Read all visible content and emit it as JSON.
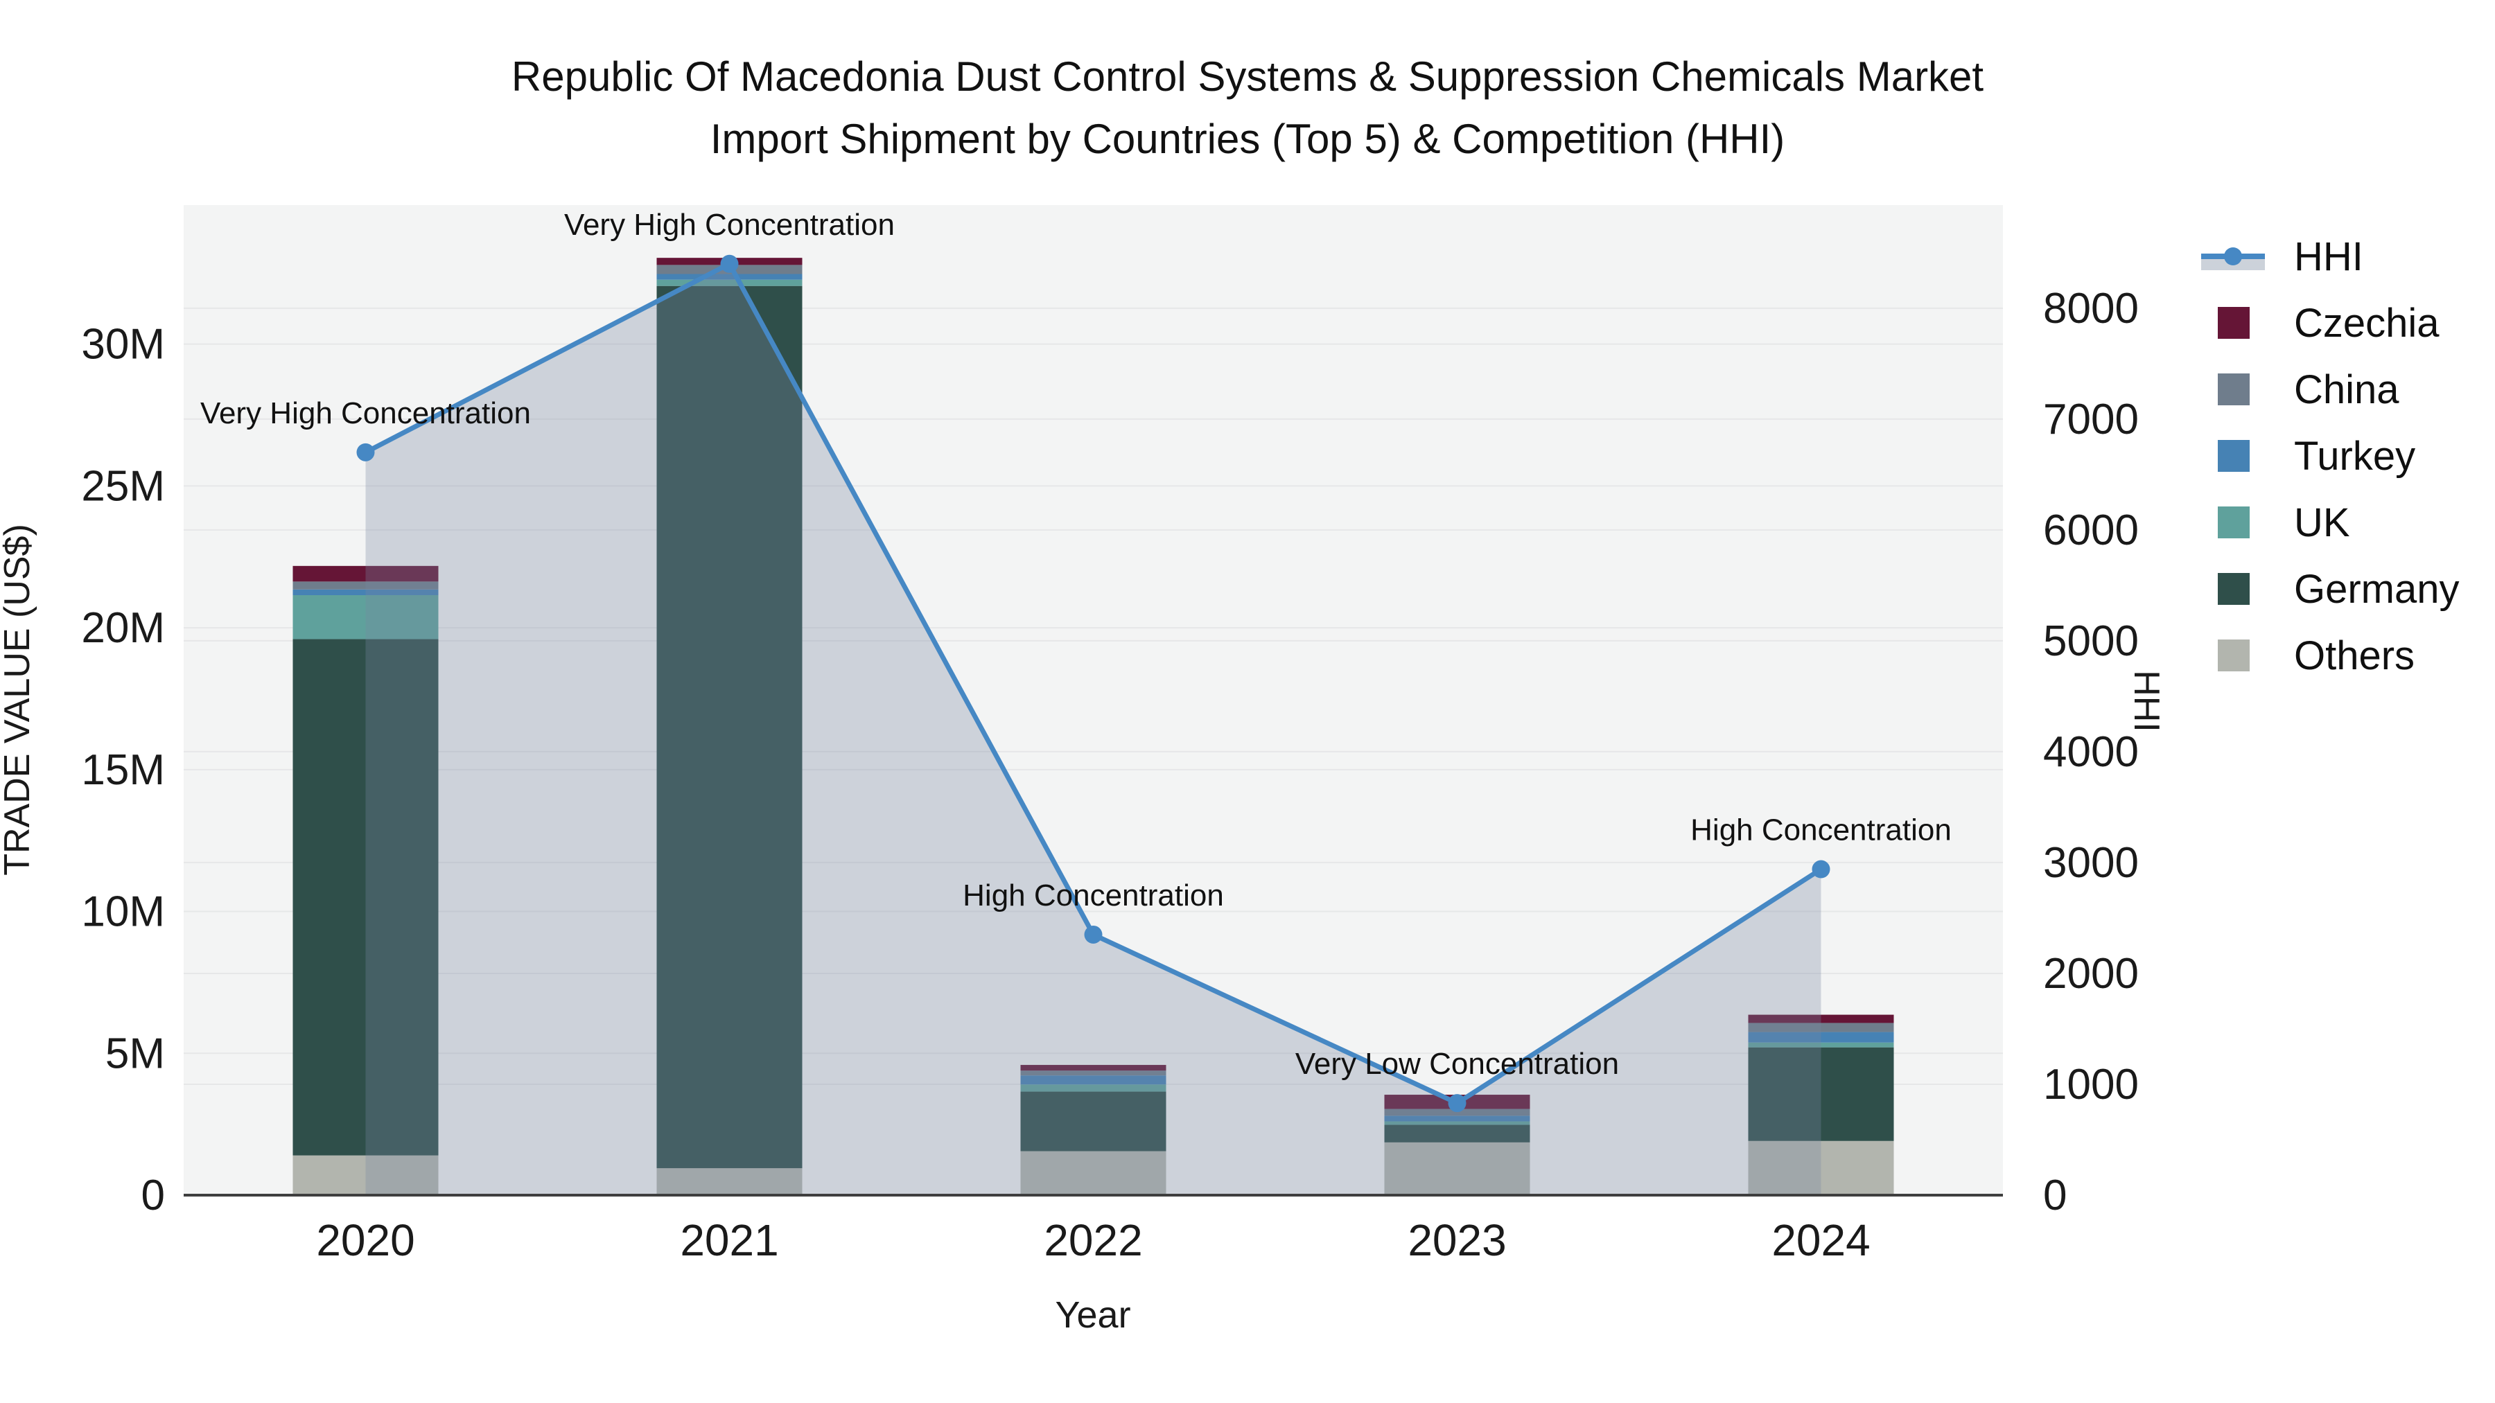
{
  "figure": {
    "title_line1": "Republic Of Macedonia Dust Control Systems & Suppression Chemicals Market",
    "title_line2": "Import Shipment by Countries (Top 5) & Competition (HHI)"
  },
  "legend": {
    "items": [
      {
        "label": "HHI",
        "type": "line",
        "color": "#4688c4",
        "area": "#ccd2da"
      },
      {
        "label": "Czechia",
        "type": "swatch",
        "color": "#651536"
      },
      {
        "label": "China",
        "type": "swatch",
        "color": "#6f7d8c"
      },
      {
        "label": "Turkey",
        "type": "swatch",
        "color": "#4682b4"
      },
      {
        "label": "UK",
        "type": "swatch",
        "color": "#5fa19c"
      },
      {
        "label": "Germany",
        "type": "swatch",
        "color": "#2f4f4a"
      },
      {
        "label": "Others",
        "type": "swatch",
        "color": "#b2b5ae"
      }
    ]
  },
  "chart_data": {
    "type": "bar+line",
    "title": "Republic Of Macedonia Dust Control Systems & Suppression Chemicals Market Import Shipment by Countries (Top 5) & Competition (HHI)",
    "xlabel": "Year",
    "ylabel": "TRADE VALUE (US$)",
    "y2label": "HHI",
    "categories": [
      "2020",
      "2021",
      "2022",
      "2023",
      "2024"
    ],
    "bar_unit": "M US$",
    "series": [
      {
        "name": "Others",
        "color": "#b2b5ae",
        "values": [
          1.4,
          0.95,
          1.55,
          1.86,
          1.91
        ]
      },
      {
        "name": "Germany",
        "color": "#2f4f4a",
        "values": [
          18.2,
          31.1,
          2.1,
          0.62,
          3.3
        ]
      },
      {
        "name": "UK",
        "color": "#5fa19c",
        "values": [
          1.55,
          0.22,
          0.25,
          0.12,
          0.17
        ]
      },
      {
        "name": "Turkey",
        "color": "#4682b4",
        "values": [
          0.2,
          0.2,
          0.32,
          0.2,
          0.37
        ]
      },
      {
        "name": "China",
        "color": "#6f7d8c",
        "values": [
          0.28,
          0.32,
          0.17,
          0.24,
          0.32
        ]
      },
      {
        "name": "Czechia",
        "color": "#651536",
        "values": [
          0.55,
          0.25,
          0.2,
          0.5,
          0.29
        ]
      }
    ],
    "stack_order_note": "series listed bottom-to-top",
    "line": {
      "name": "HHI",
      "color": "#4688c4",
      "area_fill": "rgba(120,135,160,0.31)",
      "values": [
        6700,
        8400,
        2350,
        830,
        2940
      ]
    },
    "annotations": [
      "Very High Concentration",
      "Very High Concentration",
      "High Concentration",
      "Very Low Concentration",
      "High Concentration"
    ],
    "left_axis": {
      "ticks": [
        "0",
        "5M",
        "10M",
        "15M",
        "20M",
        "25M",
        "30M"
      ],
      "tick_values": [
        0,
        5,
        10,
        15,
        20,
        25,
        30
      ],
      "range": [
        0,
        34.9
      ]
    },
    "right_axis": {
      "ticks": [
        "0",
        "1000",
        "2000",
        "3000",
        "4000",
        "5000",
        "6000",
        "7000",
        "8000"
      ],
      "tick_values": [
        0,
        1000,
        2000,
        3000,
        4000,
        5000,
        6000,
        7000,
        8000
      ],
      "range": [
        0,
        8930
      ]
    },
    "grid": true,
    "legend_position": "right",
    "plot_bg": "#f3f4f4",
    "grid_color": "#e6e7e8",
    "axis_line_color": "#3f3f3f",
    "text_color": "#1a1a1a"
  }
}
